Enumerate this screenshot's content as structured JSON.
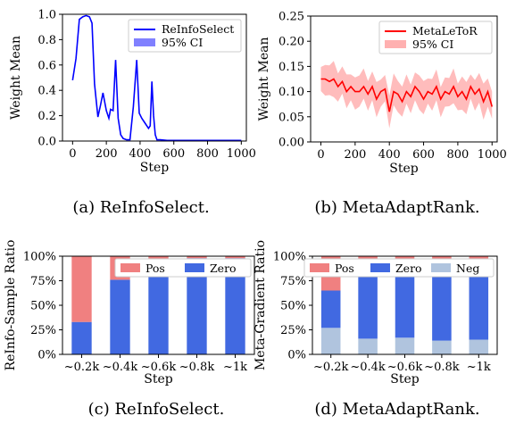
{
  "chart_data": [
    {
      "type": "line",
      "caption": "(a) ReInfoSelect.",
      "xlabel": "Step",
      "ylabel": "Weight Mean",
      "xlim": [
        -60,
        1030
      ],
      "ylim": [
        0,
        1.0
      ],
      "xticks": [
        0,
        200,
        400,
        600,
        800,
        1000
      ],
      "yticks": [
        0.0,
        0.2,
        0.4,
        0.6,
        0.8,
        1.0
      ],
      "legend_position": "top-right",
      "series": [
        {
          "name": "ReInfoSelect",
          "color": "#0000ff",
          "x": [
            0,
            20,
            40,
            60,
            80,
            100,
            115,
            130,
            150,
            165,
            180,
            200,
            215,
            225,
            240,
            255,
            270,
            285,
            300,
            320,
            340,
            360,
            380,
            395,
            410,
            430,
            450,
            460,
            470,
            480,
            490,
            500,
            520,
            560,
            600,
            700,
            800,
            900,
            1000
          ],
          "y": [
            0.48,
            0.65,
            0.96,
            0.98,
            0.99,
            0.98,
            0.93,
            0.45,
            0.19,
            0.28,
            0.38,
            0.24,
            0.18,
            0.25,
            0.24,
            0.64,
            0.18,
            0.05,
            0.02,
            0.01,
            0.01,
            0.27,
            0.64,
            0.22,
            0.18,
            0.14,
            0.1,
            0.12,
            0.47,
            0.2,
            0.05,
            0.01,
            0.01,
            0.005,
            0.005,
            0.005,
            0.005,
            0.005,
            0.005
          ]
        }
      ],
      "ci_name": "95% CI",
      "ci_color": "#8080ff"
    },
    {
      "type": "line",
      "caption": "(b) MetaAdaptRank.",
      "xlabel": "Step",
      "ylabel": "Weight Mean",
      "xlim": [
        -60,
        1030
      ],
      "ylim": [
        0,
        0.25
      ],
      "xticks": [
        0,
        200,
        400,
        600,
        800,
        1000
      ],
      "yticks": [
        0.0,
        0.05,
        0.1,
        0.15,
        0.2,
        0.25
      ],
      "ytick_labels": [
        "0.00",
        "0.05",
        "0.10",
        "0.15",
        "0.20",
        "0.25"
      ],
      "legend_position": "top-right",
      "series": [
        {
          "name": "MetaLeToR",
          "color": "#ff0000",
          "x": [
            0,
            25,
            50,
            75,
            100,
            125,
            150,
            175,
            200,
            225,
            250,
            275,
            300,
            325,
            350,
            375,
            400,
            425,
            450,
            475,
            500,
            525,
            550,
            575,
            600,
            625,
            650,
            675,
            700,
            725,
            750,
            775,
            800,
            825,
            850,
            875,
            900,
            925,
            950,
            975,
            1000
          ],
          "y": [
            0.125,
            0.125,
            0.12,
            0.125,
            0.11,
            0.12,
            0.1,
            0.11,
            0.1,
            0.1,
            0.11,
            0.095,
            0.11,
            0.085,
            0.1,
            0.105,
            0.06,
            0.1,
            0.095,
            0.08,
            0.1,
            0.09,
            0.11,
            0.1,
            0.085,
            0.1,
            0.095,
            0.11,
            0.085,
            0.1,
            0.095,
            0.11,
            0.09,
            0.1,
            0.085,
            0.11,
            0.095,
            0.105,
            0.08,
            0.1,
            0.07
          ]
        }
      ],
      "ci_name": "95% CI",
      "ci_color": "#ffb0b0",
      "ci_halfwidth": 0.03
    },
    {
      "type": "bar",
      "stacked": true,
      "caption": "(c) ReInfoSelect.",
      "xlabel": "Step",
      "ylabel": "ReInfo-Sample Ratio",
      "categories": [
        "~0.2k",
        "~0.4k",
        "~0.6k",
        "~0.8k",
        "~1k"
      ],
      "yticks": [
        "0%",
        "25%",
        "50%",
        "75%",
        "100%"
      ],
      "ylim": [
        0,
        100
      ],
      "legend_position": "top",
      "series": [
        {
          "name": "Zero",
          "color": "#4169e1",
          "values": [
            33,
            76,
            90,
            98,
            98
          ]
        },
        {
          "name": "Pos",
          "color": "#f08080",
          "values": [
            67,
            24,
            10,
            2,
            2
          ]
        }
      ],
      "legend_order": [
        "Pos",
        "Zero"
      ]
    },
    {
      "type": "bar",
      "stacked": true,
      "caption": "(d) MetaAdaptRank.",
      "xlabel": "Step",
      "ylabel": "Meta-Gradient Ratio",
      "categories": [
        "~0.2k",
        "~0.4k",
        "~0.6k",
        "~0.8k",
        "~1k"
      ],
      "yticks": [
        "0%",
        "25%",
        "50%",
        "75%",
        "100%"
      ],
      "ylim": [
        0,
        100
      ],
      "legend_position": "top",
      "series": [
        {
          "name": "Neg",
          "color": "#b0c4de",
          "values": [
            27,
            16,
            17,
            14,
            15
          ]
        },
        {
          "name": "Zero",
          "color": "#4169e1",
          "values": [
            38,
            63,
            66,
            68,
            69
          ]
        },
        {
          "name": "Pos",
          "color": "#f08080",
          "values": [
            35,
            21,
            17,
            18,
            16
          ]
        }
      ],
      "legend_order": [
        "Pos",
        "Zero",
        "Neg"
      ]
    }
  ]
}
